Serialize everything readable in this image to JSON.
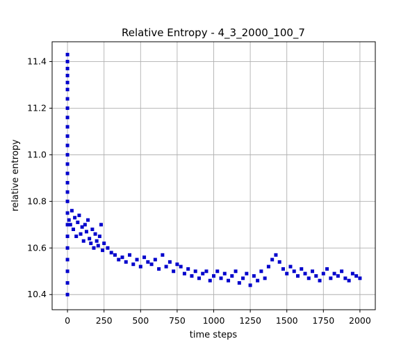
{
  "chart_data": {
    "type": "scatter",
    "title": "Relative Entropy - 4_3_2000_100_7",
    "xlabel": "time steps",
    "ylabel": "relative entropy",
    "xlim": [
      -105,
      2105
    ],
    "ylim": [
      10.335,
      11.485
    ],
    "xticks": [
      0,
      250,
      500,
      750,
      1000,
      1250,
      1500,
      1750,
      2000
    ],
    "xtick_labels": [
      "0",
      "250",
      "500",
      "750",
      "1000",
      "1250",
      "1500",
      "1750",
      "2000"
    ],
    "yticks": [
      10.4,
      10.6,
      10.8,
      11.0,
      11.2,
      11.4
    ],
    "ytick_labels": [
      "10.4",
      "10.6",
      "10.8",
      "11.0",
      "11.2",
      "11.4"
    ],
    "grid": true,
    "marker_color": "#0000cc",
    "marker": "square",
    "series": [
      {
        "x": [
          0,
          0,
          0,
          0,
          0,
          0,
          0,
          0,
          0,
          0,
          0,
          0,
          0,
          0,
          0,
          0,
          0,
          0,
          0,
          0,
          0,
          0,
          0,
          0,
          0,
          0,
          10,
          20,
          30,
          40,
          50,
          60,
          70,
          80,
          90,
          100,
          110,
          120,
          130,
          140,
          150,
          160,
          170,
          180,
          190,
          200,
          210,
          220,
          230,
          240,
          250,
          275,
          300,
          325,
          350,
          375,
          400,
          425,
          450,
          475,
          500,
          525,
          550,
          575,
          600,
          625,
          650,
          675,
          700,
          725,
          750,
          775,
          800,
          825,
          850,
          875,
          900,
          925,
          950,
          975,
          1000,
          1025,
          1050,
          1075,
          1100,
          1125,
          1150,
          1175,
          1200,
          1225,
          1250,
          1275,
          1300,
          1325,
          1350,
          1375,
          1400,
          1425,
          1450,
          1475,
          1500,
          1525,
          1550,
          1575,
          1600,
          1625,
          1650,
          1675,
          1700,
          1725,
          1750,
          1775,
          1800,
          1825,
          1850,
          1875,
          1900,
          1925,
          1950,
          1975,
          2000
        ],
        "y": [
          11.43,
          11.4,
          11.37,
          11.34,
          11.31,
          11.28,
          11.24,
          11.2,
          11.16,
          11.12,
          11.08,
          11.04,
          11.0,
          10.96,
          10.92,
          10.88,
          10.84,
          10.8,
          10.75,
          10.7,
          10.65,
          10.6,
          10.55,
          10.5,
          10.45,
          10.4,
          10.72,
          10.7,
          10.76,
          10.68,
          10.73,
          10.65,
          10.71,
          10.74,
          10.66,
          10.69,
          10.63,
          10.7,
          10.67,
          10.72,
          10.64,
          10.62,
          10.68,
          10.6,
          10.66,
          10.63,
          10.61,
          10.65,
          10.7,
          10.59,
          10.62,
          10.6,
          10.58,
          10.57,
          10.55,
          10.56,
          10.54,
          10.57,
          10.53,
          10.55,
          10.52,
          10.56,
          10.54,
          10.53,
          10.55,
          10.51,
          10.57,
          10.52,
          10.54,
          10.5,
          10.53,
          10.52,
          10.49,
          10.51,
          10.48,
          10.5,
          10.47,
          10.49,
          10.5,
          10.46,
          10.48,
          10.5,
          10.47,
          10.49,
          10.46,
          10.48,
          10.5,
          10.45,
          10.47,
          10.49,
          10.44,
          10.48,
          10.46,
          10.5,
          10.47,
          10.52,
          10.55,
          10.57,
          10.54,
          10.51,
          10.49,
          10.52,
          10.5,
          10.48,
          10.51,
          10.49,
          10.47,
          10.5,
          10.48,
          10.46,
          10.49,
          10.51,
          10.47,
          10.49,
          10.48,
          10.5,
          10.47,
          10.46,
          10.49,
          10.48,
          10.47
        ]
      }
    ]
  }
}
